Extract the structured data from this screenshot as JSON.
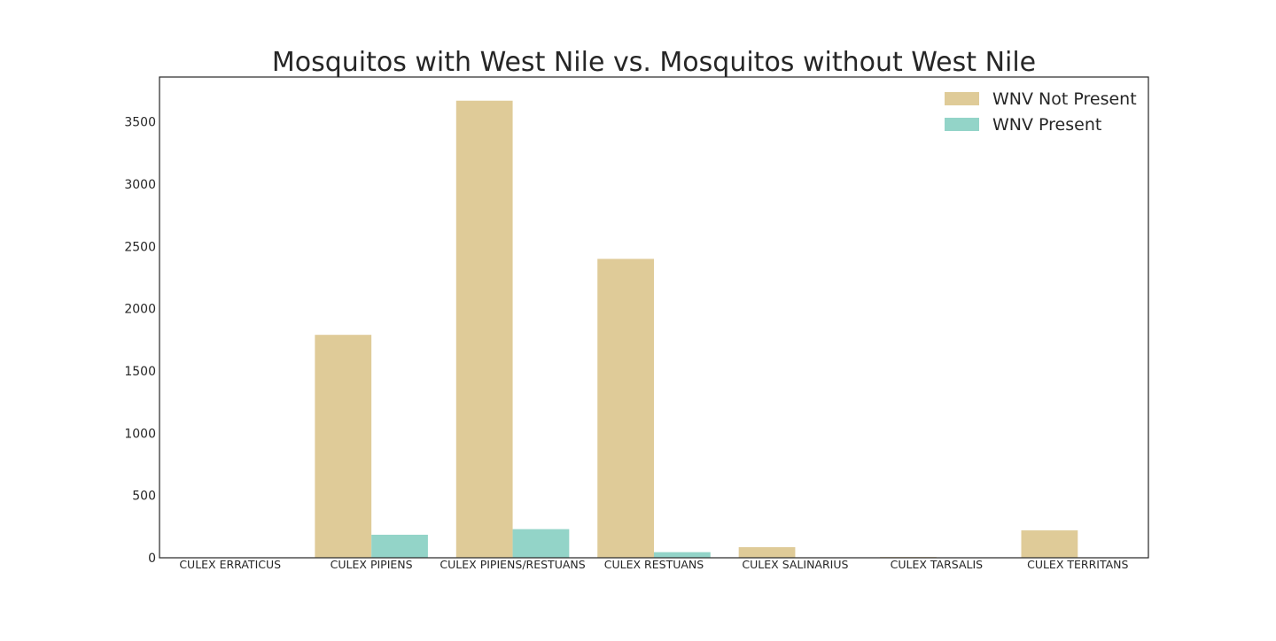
{
  "chart_data": {
    "type": "bar",
    "title": "Mosquitos with West Nile vs. Mosquitos without West Nile",
    "xlabel": "",
    "ylabel": "",
    "categories": [
      "CULEX ERRATICUS",
      "CULEX PIPIENS",
      "CULEX PIPIENS/RESTUANS",
      "CULEX RESTUANS",
      "CULEX SALINARIUS",
      "CULEX TARSALIS",
      "CULEX TERRITANS"
    ],
    "series": [
      {
        "name": "WNV Not Present",
        "values": [
          1,
          1790,
          3670,
          2400,
          85,
          6,
          220
        ],
        "color": "#dfcb98"
      },
      {
        "name": "WNV Present",
        "values": [
          0,
          185,
          230,
          45,
          0,
          0,
          0
        ],
        "color": "#93d4c8"
      }
    ],
    "ylim": [
      0,
      3860
    ],
    "yticks": [
      0,
      500,
      1000,
      1500,
      2000,
      2500,
      3000,
      3500
    ],
    "grid": false,
    "legend_position": "top-right"
  }
}
